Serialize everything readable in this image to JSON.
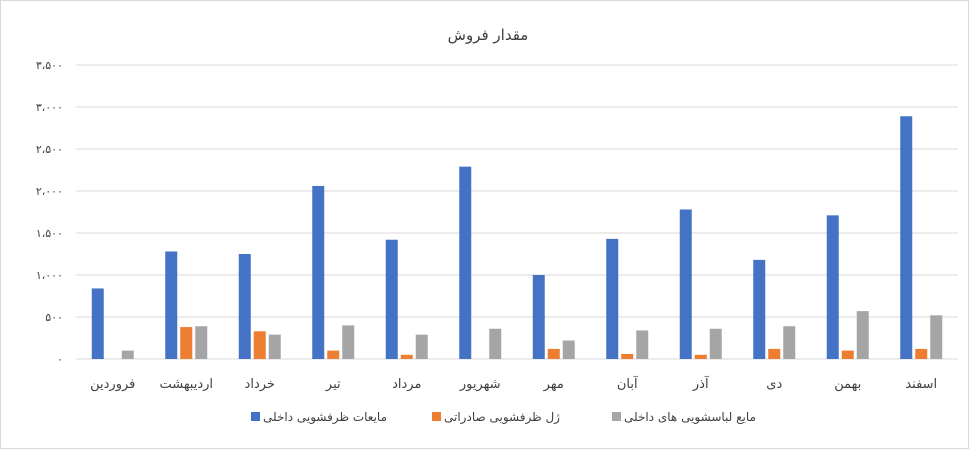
{
  "chart_data": {
    "type": "bar",
    "title": "مقدار فروش",
    "categories": [
      "فروردین",
      "اردیبهشت",
      "خرداد",
      "تیر",
      "مرداد",
      "شهریور",
      "مهر",
      "آبان",
      "آذر",
      "دی",
      "بهمن",
      "اسفند"
    ],
    "series": [
      {
        "name": "مایعات ظرفشویی داخلی",
        "color": "#4472c4",
        "values": [
          840,
          1280,
          1250,
          2060,
          1420,
          2290,
          1000,
          1430,
          1780,
          1180,
          1710,
          2890
        ]
      },
      {
        "name": "ژل ظرفشویی صادراتی",
        "color": "#ed7d31",
        "values": [
          0,
          380,
          330,
          100,
          50,
          0,
          120,
          60,
          50,
          120,
          100,
          120
        ]
      },
      {
        "name": "مایع لباسشویی های داخلی",
        "color": "#a5a5a5",
        "values": [
          100,
          390,
          290,
          400,
          290,
          360,
          220,
          340,
          360,
          390,
          570,
          520
        ]
      }
    ],
    "yticks": [
      {
        "value": 0,
        "label": "۰"
      },
      {
        "value": 500,
        "label": "۵۰۰"
      },
      {
        "value": 1000,
        "label": "۱،۰۰۰"
      },
      {
        "value": 1500,
        "label": "۱،۵۰۰"
      },
      {
        "value": 2000,
        "label": "۲،۰۰۰"
      },
      {
        "value": 2500,
        "label": "۲،۵۰۰"
      },
      {
        "value": 3000,
        "label": "۳،۰۰۰"
      },
      {
        "value": 3500,
        "label": "۳،۵۰۰"
      }
    ],
    "ylim": [
      0,
      3500
    ],
    "xlabel": "",
    "ylabel": "",
    "grid": true,
    "legend_position": "bottom"
  }
}
